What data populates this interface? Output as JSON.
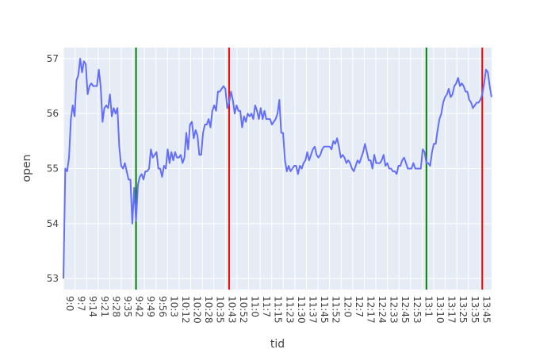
{
  "chart_data": {
    "type": "line",
    "title": "",
    "xlabel": "tid",
    "ylabel": "open",
    "ylim": [
      52.8,
      57.2
    ],
    "grid": true,
    "legend": "none",
    "y_ticks": [
      53,
      54,
      55,
      56,
      57
    ],
    "x_tick_labels": [
      "9:0",
      "9:7",
      "9:14",
      "9:21",
      "9:28",
      "9:35",
      "9:42",
      "9:49",
      "9:56",
      "10:3",
      "10:12",
      "10:20",
      "10:28",
      "10:35",
      "10:43",
      "10:52",
      "11:0",
      "11:7",
      "11:15",
      "11:23",
      "11:30",
      "11:37",
      "11:45",
      "11:52",
      "12:0",
      "12:7",
      "12:17",
      "12:24",
      "12:33",
      "12:45",
      "12:53",
      "13:1",
      "13:10",
      "13:17",
      "13:25",
      "13:35",
      "13:45"
    ],
    "series": [
      {
        "color": "#636efa",
        "values": [
          53.0,
          55.0,
          54.95,
          55.2,
          55.9,
          56.15,
          55.95,
          56.6,
          56.7,
          57.0,
          56.75,
          56.95,
          56.9,
          56.35,
          56.5,
          56.55,
          56.5,
          56.5,
          56.5,
          56.8,
          56.5,
          55.85,
          56.1,
          56.15,
          56.1,
          56.35,
          55.95,
          56.1,
          56.0,
          56.1,
          55.4,
          55.05,
          55.0,
          55.1,
          54.95,
          54.8,
          54.8,
          54.0,
          54.65,
          54.05,
          54.7,
          54.85,
          54.9,
          54.8,
          54.95,
          54.95,
          55.0,
          55.35,
          55.2,
          55.25,
          55.3,
          55.0,
          55.0,
          54.85,
          55.05,
          55.0,
          55.35,
          55.1,
          55.3,
          55.15,
          55.3,
          55.2,
          55.2,
          55.25,
          55.1,
          55.2,
          55.65,
          55.35,
          55.8,
          55.85,
          55.55,
          55.7,
          55.6,
          55.25,
          55.25,
          55.65,
          55.8,
          55.8,
          55.9,
          55.75,
          56.05,
          56.15,
          56.05,
          56.4,
          56.4,
          56.45,
          56.5,
          56.45,
          56.1,
          56.2,
          56.4,
          56.25,
          56.0,
          56.15,
          56.05,
          56.05,
          55.75,
          55.95,
          55.85,
          56.0,
          55.95,
          56.0,
          55.9,
          56.15,
          56.05,
          55.9,
          56.1,
          55.9,
          56.05,
          55.9,
          55.9,
          55.9,
          55.8,
          55.85,
          55.9,
          56.0,
          56.25,
          55.65,
          55.65,
          55.15,
          54.95,
          55.05,
          54.95,
          55.0,
          55.05,
          55.05,
          54.9,
          55.05,
          55.0,
          55.1,
          55.15,
          55.3,
          55.15,
          55.25,
          55.35,
          55.4,
          55.25,
          55.2,
          55.25,
          55.35,
          55.4,
          55.4,
          55.4,
          55.4,
          55.35,
          55.5,
          55.45,
          55.55,
          55.4,
          55.2,
          55.25,
          55.2,
          55.1,
          55.15,
          55.1,
          55.0,
          54.95,
          55.05,
          55.15,
          55.1,
          55.2,
          55.3,
          55.45,
          55.3,
          55.15,
          55.15,
          55.0,
          55.25,
          55.1,
          55.1,
          55.1,
          55.15,
          55.25,
          55.05,
          55.1,
          55.0,
          55.0,
          54.95,
          54.95,
          54.9,
          55.05,
          55.05,
          55.15,
          55.2,
          55.1,
          55.0,
          55.0,
          55.0,
          55.1,
          55.0,
          55.0,
          55.0,
          55.0,
          55.35,
          55.3,
          55.1,
          55.1,
          55.05,
          55.3,
          55.45,
          55.45,
          55.7,
          55.9,
          56.0,
          56.2,
          56.3,
          56.35,
          56.45,
          56.3,
          56.35,
          56.5,
          56.55,
          56.65,
          56.5,
          56.55,
          56.5,
          56.4,
          56.4,
          56.25,
          56.2,
          56.1,
          56.15,
          56.2,
          56.2,
          56.25,
          56.35,
          56.55,
          56.8,
          56.75,
          56.5,
          56.3
        ]
      }
    ],
    "vlines": [
      {
        "color": "#008000",
        "at_index": 39
      },
      {
        "color": "#ff0000",
        "at_index": 89
      },
      {
        "color": "#008000",
        "at_index": 195
      },
      {
        "color": "#ff0000",
        "at_index": 225
      }
    ]
  }
}
